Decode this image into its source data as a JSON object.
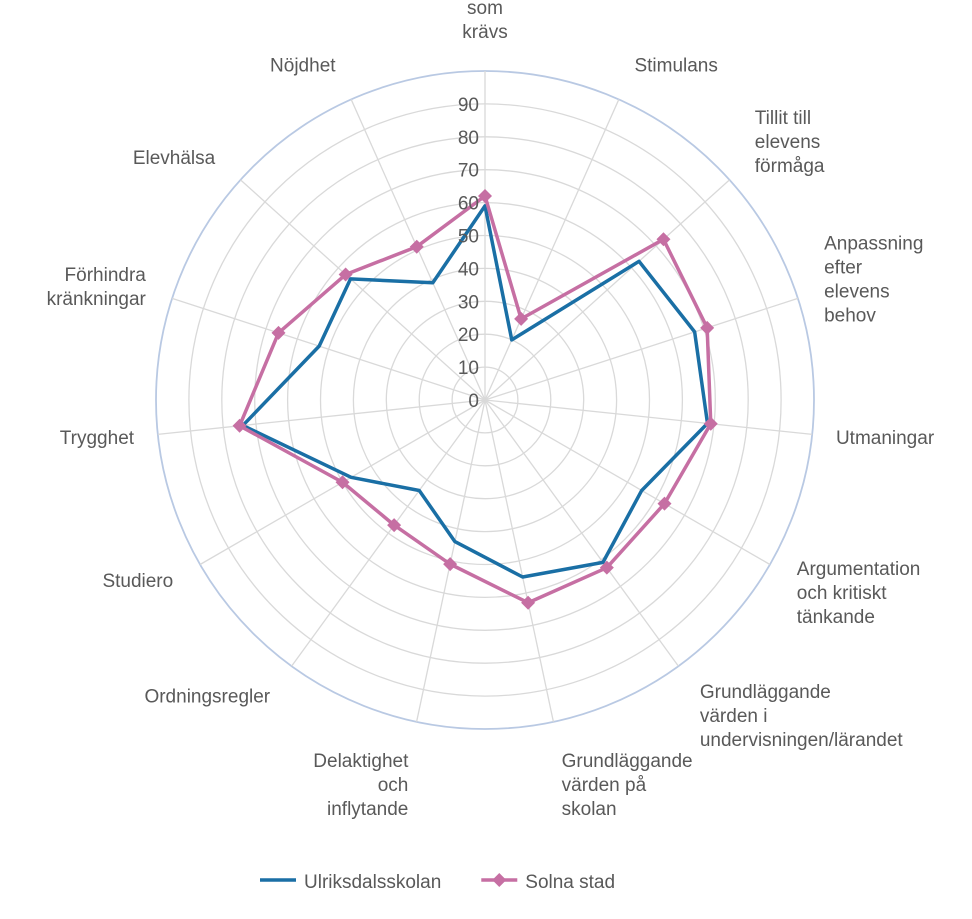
{
  "chart_data": {
    "type": "radar",
    "categories": [
      "Veta vad\nsom\nkrävs",
      "Stimulans",
      "Tillit till\nelevens\nförmåga",
      "Anpassning\nefter\nelevens\nbehov",
      "Utmaningar",
      "Argumentation\noch kritiskt\ntänkande",
      "Grundläggande\nvärden i\nundervisningen/lärandet",
      "Grundläggande\nvärden på\nskolan",
      "Delaktighet\noch\ninflytande",
      "Ordningsregler",
      "Studiero",
      "Trygghet",
      "Förhindra\nkränkningar",
      "Elevhälsa",
      "Nöjdhet"
    ],
    "series": [
      {
        "name": "Ulriksdalsskolan",
        "color": "#1a6fa5",
        "marker": "none",
        "values": [
          59,
          20,
          63,
          67,
          68,
          55,
          61,
          55,
          44,
          34,
          47,
          74,
          53,
          55,
          39
        ]
      },
      {
        "name": "Solna stad",
        "color": "#c66fa3",
        "marker": "diamond",
        "values": [
          62,
          27,
          73,
          71,
          69,
          63,
          63,
          63,
          51,
          47,
          50,
          75,
          66,
          57,
          51
        ]
      }
    ],
    "ylim": [
      0,
      100
    ],
    "yticks": [
      0,
      10,
      20,
      30,
      40,
      50,
      60,
      70,
      80,
      90
    ],
    "grid": true,
    "legend": "bottom"
  }
}
